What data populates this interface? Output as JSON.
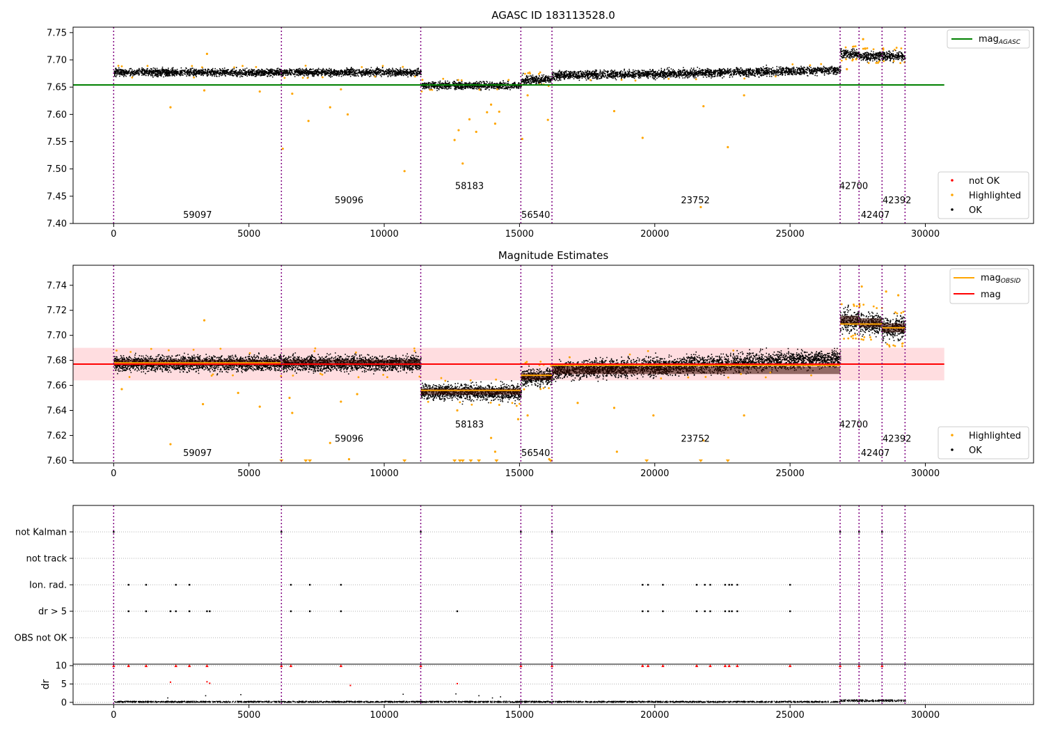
{
  "colors": {
    "ok": "#000000",
    "highlighted": "#ffa500",
    "not_ok": "#ff0000",
    "agasc_line": "#008000",
    "mag_line": "#ff0000",
    "mag_obsid_line": "#ffa500",
    "band": "#ffdde0",
    "obsid_separator": "#800080",
    "grid": "#b0b0b0"
  },
  "chart_data": [
    {
      "type": "scatter",
      "title": "AGASC ID 183113528.0",
      "xlim": [
        -1500,
        34000
      ],
      "ylim": [
        7.4,
        7.76
      ],
      "x_ticks": [
        0,
        5000,
        10000,
        15000,
        20000,
        25000,
        30000
      ],
      "y_ticks": [
        7.4,
        7.45,
        7.5,
        7.55,
        7.6,
        7.65,
        7.7,
        7.75
      ],
      "obsid_boundaries": [
        0,
        6200,
        11350,
        15050,
        16200,
        26850,
        27550,
        28400,
        29250
      ],
      "obsid_labels": [
        {
          "text": "59097",
          "x": 3100,
          "y": 7.41
        },
        {
          "text": "59096",
          "x": 8700,
          "y": 7.437
        },
        {
          "text": "58183",
          "x": 13150,
          "y": 7.463
        },
        {
          "text": "56540",
          "x": 15600,
          "y": 7.41
        },
        {
          "text": "23752",
          "x": 21500,
          "y": 7.437
        },
        {
          "text": "42700",
          "x": 27350,
          "y": 7.463
        },
        {
          "text": "42407",
          "x": 28150,
          "y": 7.41
        },
        {
          "text": "42392",
          "x": 28950,
          "y": 7.437
        }
      ],
      "reference_line": {
        "name": "mag_AGASC",
        "y": 7.654,
        "x": [
          -1500,
          30700
        ]
      },
      "ok_segments": [
        {
          "x": [
            0,
            6200
          ],
          "mean": 7.678,
          "spread": 0.006
        },
        {
          "x": [
            6200,
            11350
          ],
          "mean": 7.678,
          "spread": 0.006
        },
        {
          "x": [
            11350,
            15050
          ],
          "mean": 7.654,
          "spread": 0.006
        },
        {
          "x": [
            15050,
            16200
          ],
          "mean": 7.665,
          "spread": 0.007
        },
        {
          "x": [
            16200,
            26850
          ],
          "mean": 7.672,
          "trend_end": 7.682,
          "spread": 0.007
        },
        {
          "x": [
            26850,
            27550
          ],
          "mean": 7.712,
          "spread": 0.008
        },
        {
          "x": [
            27550,
            28400
          ],
          "mean": 7.708,
          "spread": 0.008
        },
        {
          "x": [
            28400,
            29250
          ],
          "mean": 7.708,
          "spread": 0.008
        }
      ],
      "highlighted_outliers": [
        [
          2100,
          7.613
        ],
        [
          3450,
          7.711
        ],
        [
          3350,
          7.644
        ],
        [
          5400,
          7.642
        ],
        [
          6250,
          7.537
        ],
        [
          6600,
          7.638
        ],
        [
          7200,
          7.588
        ],
        [
          8000,
          7.613
        ],
        [
          8650,
          7.6
        ],
        [
          8400,
          7.646
        ],
        [
          10750,
          7.496
        ],
        [
          12600,
          7.553
        ],
        [
          12750,
          7.571
        ],
        [
          12900,
          7.51
        ],
        [
          13150,
          7.591
        ],
        [
          13400,
          7.568
        ],
        [
          13800,
          7.604
        ],
        [
          13950,
          7.618
        ],
        [
          14100,
          7.583
        ],
        [
          14250,
          7.605
        ],
        [
          15100,
          7.555
        ],
        [
          15300,
          7.635
        ],
        [
          16050,
          7.59
        ],
        [
          18500,
          7.606
        ],
        [
          19550,
          7.557
        ],
        [
          21700,
          7.43
        ],
        [
          21800,
          7.615
        ],
        [
          22700,
          7.54
        ],
        [
          23300,
          7.635
        ],
        [
          27700,
          7.738
        ],
        [
          27100,
          7.683
        ]
      ],
      "legend": {
        "position": "upper-right",
        "entries": [
          "mag_AGASC"
        ]
      },
      "legend2": {
        "position": "lower-right",
        "entries": [
          "not OK",
          "Highlighted",
          "OK"
        ]
      }
    },
    {
      "type": "scatter",
      "title": "Magnitude Estimates",
      "xlim": [
        -1500,
        34000
      ],
      "ylim": [
        7.598,
        7.756
      ],
      "x_ticks": [
        0,
        5000,
        10000,
        15000,
        20000,
        25000,
        30000
      ],
      "y_ticks": [
        7.6,
        7.62,
        7.64,
        7.66,
        7.68,
        7.7,
        7.72,
        7.74
      ],
      "obsid_boundaries": [
        0,
        6200,
        11350,
        15050,
        16200,
        26850,
        27550,
        28400,
        29250
      ],
      "obsid_labels": [
        {
          "text": "59097",
          "x": 3100,
          "y": 7.6035
        },
        {
          "text": "59096",
          "x": 8700,
          "y": 7.615
        },
        {
          "text": "58183",
          "x": 13150,
          "y": 7.6265
        },
        {
          "text": "56540",
          "x": 15600,
          "y": 7.6035
        },
        {
          "text": "23752",
          "x": 21500,
          "y": 7.615
        },
        {
          "text": "42700",
          "x": 27350,
          "y": 7.6265
        },
        {
          "text": "42407",
          "x": 28150,
          "y": 7.6035
        },
        {
          "text": "42392",
          "x": 28950,
          "y": 7.615
        }
      ],
      "mag": {
        "name": "mag",
        "y": 7.677,
        "band": [
          7.664,
          7.69
        ],
        "x": [
          -1500,
          30700
        ]
      },
      "mag_obsid": [
        {
          "x": [
            0,
            6200
          ],
          "y": 7.678
        },
        {
          "x": [
            6200,
            11350
          ],
          "y": 7.677
        },
        {
          "x": [
            11350,
            15050
          ],
          "y": 7.656
        },
        {
          "x": [
            15050,
            16200
          ],
          "y": 7.668
        },
        {
          "x": [
            16200,
            26850
          ],
          "y": 7.676
        },
        {
          "x": [
            26850,
            27550
          ],
          "y": 7.709
        },
        {
          "x": [
            27550,
            28400
          ],
          "y": 7.709
        },
        {
          "x": [
            28400,
            29250
          ],
          "y": 7.706
        }
      ],
      "ok_segments": [
        {
          "x": [
            0,
            6200
          ],
          "mean": 7.678,
          "spread": 0.0055
        },
        {
          "x": [
            6200,
            11350
          ],
          "mean": 7.678,
          "spread": 0.0055
        },
        {
          "x": [
            11350,
            15050
          ],
          "mean": 7.655,
          "spread": 0.0055
        },
        {
          "x": [
            15050,
            16200
          ],
          "mean": 7.667,
          "spread": 0.006
        },
        {
          "x": [
            16200,
            26850
          ],
          "mean": 7.672,
          "trend_end": 7.682,
          "spread": 0.0065
        },
        {
          "x": [
            26850,
            27550
          ],
          "mean": 7.712,
          "spread": 0.008
        },
        {
          "x": [
            27550,
            28400
          ],
          "mean": 7.71,
          "spread": 0.008
        },
        {
          "x": [
            28400,
            29250
          ],
          "mean": 7.706,
          "spread": 0.008
        }
      ],
      "highlighted_outliers": [
        [
          300,
          7.657
        ],
        [
          2100,
          7.613
        ],
        [
          3350,
          7.712
        ],
        [
          3300,
          7.645
        ],
        [
          4600,
          7.654
        ],
        [
          5400,
          7.643
        ],
        [
          6500,
          7.65
        ],
        [
          6600,
          7.638
        ],
        [
          8000,
          7.614
        ],
        [
          8400,
          7.647
        ],
        [
          8700,
          7.601
        ],
        [
          9000,
          7.653
        ],
        [
          14950,
          7.633
        ],
        [
          12700,
          7.64
        ],
        [
          13950,
          7.618
        ],
        [
          14100,
          7.607
        ],
        [
          15300,
          7.636
        ],
        [
          16100,
          7.601
        ],
        [
          17150,
          7.646
        ],
        [
          18500,
          7.642
        ],
        [
          18600,
          7.607
        ],
        [
          19950,
          7.636
        ],
        [
          21800,
          7.616
        ],
        [
          23300,
          7.636
        ],
        [
          27650,
          7.739
        ],
        [
          28550,
          7.735
        ],
        [
          29000,
          7.732
        ]
      ],
      "offscale_markers_x": [
        6200,
        7100,
        7250,
        10750,
        12600,
        12800,
        12900,
        13200,
        13500,
        14150,
        16150,
        19700,
        21700,
        22700
      ],
      "legend": {
        "position": "upper-right",
        "entries": [
          "mag_OBSID",
          "mag"
        ]
      },
      "legend2": {
        "position": "lower-right",
        "entries": [
          "Highlighted",
          "OK"
        ]
      }
    },
    {
      "type": "scatter",
      "title": "",
      "xlim": [
        -1500,
        34000
      ],
      "x_ticks": [
        0,
        5000,
        10000,
        15000,
        20000,
        25000,
        30000
      ],
      "flag_categories": [
        "not Kalman",
        "not track",
        "Ion. rad.",
        "dr > 5",
        "OBS not OK"
      ],
      "flag_events": {
        "not Kalman": [
          0,
          6200,
          11350,
          15050,
          16200,
          26850,
          27550,
          28400
        ],
        "not track": [],
        "Ion. rad.": [
          550,
          1200,
          2300,
          2800,
          6550,
          7250,
          8400,
          19550,
          19750,
          20300,
          21550,
          21850,
          22050,
          22600,
          22750,
          22850,
          23050,
          25000
        ],
        "dr > 5": [
          550,
          1200,
          2100,
          2300,
          2800,
          3450,
          3550,
          6550,
          7250,
          8400,
          12700,
          19550,
          19750,
          20300,
          21550,
          21850,
          22050,
          22600,
          22750,
          22850,
          23050,
          25000
        ],
        "OBS not OK": []
      },
      "obsid_boundaries": [
        0,
        6200,
        11350,
        15050,
        16200,
        26850,
        27550,
        28400,
        29250
      ]
    },
    {
      "type": "scatter",
      "ylabel": "dr",
      "xlim": [
        -1500,
        34000
      ],
      "ylim": [
        -0.6,
        10.4
      ],
      "x_ticks": [
        0,
        5000,
        10000,
        15000,
        20000,
        25000,
        30000
      ],
      "y_ticks": [
        0,
        5,
        10
      ],
      "obsid_boundaries": [
        0,
        6200,
        11350,
        15050,
        16200,
        26850,
        27550,
        28400,
        29250
      ],
      "capped_points_x": [
        0,
        550,
        1200,
        2300,
        2800,
        3450,
        6200,
        6550,
        8400,
        11350,
        15050,
        16200,
        19550,
        19750,
        20300,
        21550,
        22050,
        22600,
        22750,
        23050,
        25000,
        26850,
        27550,
        28400
      ],
      "red_points": [
        [
          2100,
          5.5
        ],
        [
          3450,
          5.6
        ],
        [
          3550,
          5.2
        ],
        [
          8750,
          4.6
        ],
        [
          12700,
          5.1
        ]
      ],
      "black_points": [
        [
          2000,
          1.2
        ],
        [
          3400,
          1.8
        ],
        [
          4700,
          2.1
        ],
        [
          10700,
          2.2
        ],
        [
          12650,
          2.3
        ],
        [
          13500,
          1.8
        ],
        [
          14000,
          1.2
        ],
        [
          14300,
          1.5
        ]
      ]
    }
  ]
}
